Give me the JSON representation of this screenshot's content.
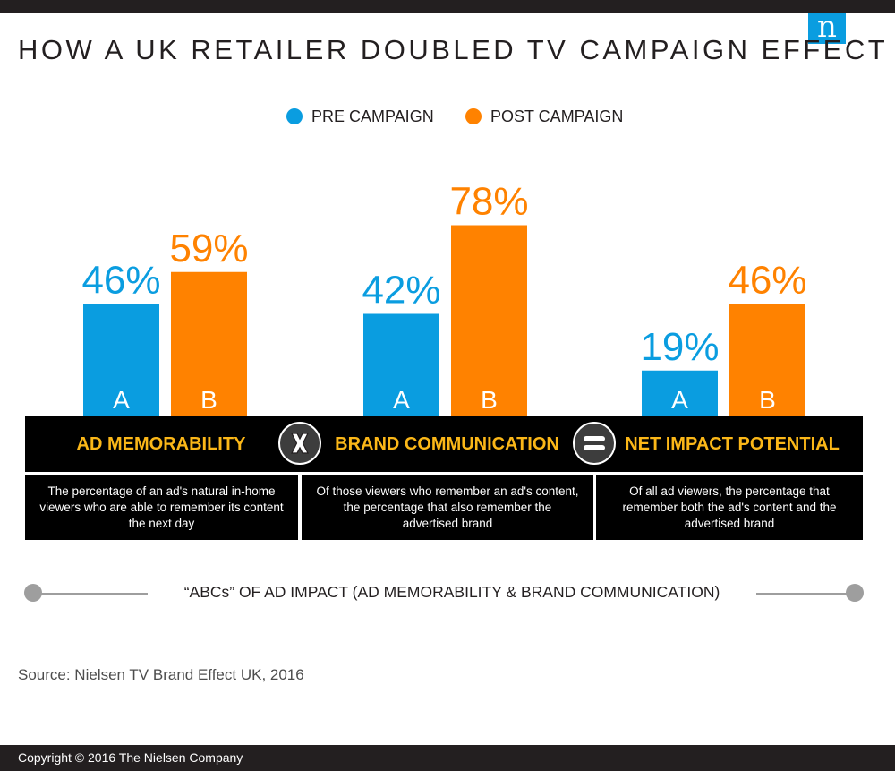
{
  "brand": {
    "logo_letter": "n"
  },
  "title": "HOW A UK RETAILER DOUBLED TV CAMPAIGN EFFECT",
  "legend": [
    {
      "label": "PRE CAMPAIGN",
      "color": "#0a9de0"
    },
    {
      "label": "POST CAMPAIGN",
      "color": "#ff8200"
    }
  ],
  "chart_data": {
    "type": "bar",
    "categories": [
      "AD MEMORABILITY",
      "BRAND COMMUNICATION",
      "NET IMPACT POTENTIAL"
    ],
    "series": [
      {
        "name": "PRE CAMPAIGN",
        "letter": "A",
        "values": [
          46,
          42,
          19
        ],
        "labels": [
          "46%",
          "42%",
          "19%"
        ],
        "color": "#0a9de0"
      },
      {
        "name": "POST CAMPAIGN",
        "letter": "B",
        "values": [
          59,
          78,
          46
        ],
        "labels": [
          "59%",
          "78%",
          "46%"
        ],
        "color": "#ff8200"
      }
    ],
    "ylim": [
      0,
      100
    ],
    "grid": false,
    "legend_position": "top-center"
  },
  "sections": [
    {
      "header": "AD MEMORABILITY",
      "description": "The percentage of an ad's natural in-home viewers who are able to remember its content the next day"
    },
    {
      "header": "BRAND COMMUNICATION",
      "description": "Of  those viewers who remember an ad's content, the percentage that also remember the advertised brand"
    },
    {
      "header": "NET IMPACT POTENTIAL",
      "description": "Of all ad viewers, the percentage that remember both the ad's content and the advertised brand"
    }
  ],
  "operators": {
    "multiply": "X",
    "equals": "="
  },
  "abc_caption": "“ABCs” OF AD IMPACT (AD MEMORABILITY  & BRAND COMMUNICATION)",
  "source": "Source: Nielsen TV Brand Effect UK, 2016",
  "copyright": "Copyright © 2016 The Nielsen Company"
}
